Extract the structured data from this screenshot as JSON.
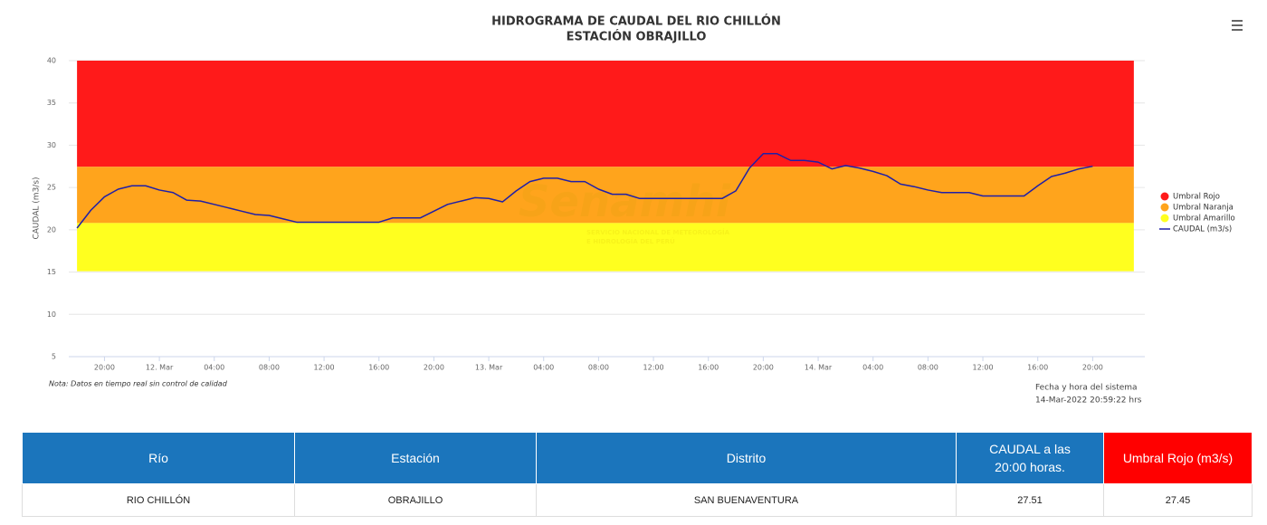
{
  "chart_data": {
    "type": "line",
    "title": "HIDROGRAMA DE CAUDAL DEL RIO CHILLÓN",
    "subtitle": "ESTACIÓN OBRAJILLO",
    "y_label": "CAUDAL (m3/s)",
    "xlim": [
      17.4,
      95.8
    ],
    "ylim": [
      5,
      40
    ],
    "yticks": [
      5,
      10,
      15,
      20,
      25,
      30,
      35,
      40
    ],
    "xticks": [
      {
        "value": 20,
        "label": "20:00"
      },
      {
        "value": 24,
        "label": "12. Mar"
      },
      {
        "value": 28,
        "label": "04:00"
      },
      {
        "value": 32,
        "label": "08:00"
      },
      {
        "value": 36,
        "label": "12:00"
      },
      {
        "value": 40,
        "label": "16:00"
      },
      {
        "value": 44,
        "label": "20:00"
      },
      {
        "value": 48,
        "label": "13. Mar"
      },
      {
        "value": 52,
        "label": "04:00"
      },
      {
        "value": 56,
        "label": "08:00"
      },
      {
        "value": 60,
        "label": "12:00"
      },
      {
        "value": 64,
        "label": "16:00"
      },
      {
        "value": 68,
        "label": "20:00"
      },
      {
        "value": 72,
        "label": "14. Mar"
      },
      {
        "value": 76,
        "label": "04:00"
      },
      {
        "value": 80,
        "label": "08:00"
      },
      {
        "value": 84,
        "label": "12:00"
      },
      {
        "value": 88,
        "label": "16:00"
      },
      {
        "value": 92,
        "label": "20:00"
      }
    ],
    "grid": true,
    "legend": "right",
    "band_x": [
      18,
      95
    ],
    "bands": [
      {
        "name": "Umbral Rojo",
        "color": "#ff1a1a",
        "from": 27.45,
        "to": 40
      },
      {
        "name": "Umbral Naranja",
        "color": "#ffa41c",
        "from": 20.8,
        "to": 27.45
      },
      {
        "name": "Umbral Amarillo",
        "color": "#ffff1f",
        "from": 15.1,
        "to": 20.8
      }
    ],
    "x": [
      18,
      19,
      20,
      21,
      22,
      23,
      24,
      25,
      26,
      27,
      28,
      29,
      30,
      31,
      32,
      33,
      34,
      35,
      36,
      37,
      38,
      39,
      40,
      41,
      42,
      43,
      44,
      45,
      46,
      47,
      48,
      49,
      50,
      51,
      52,
      53,
      54,
      55,
      56,
      57,
      58,
      59,
      60,
      61,
      62,
      63,
      64,
      65,
      66,
      67,
      68,
      69,
      70,
      71,
      72,
      73,
      74,
      75,
      76,
      77,
      78,
      79,
      80,
      81,
      82,
      83,
      84,
      85,
      86,
      87,
      88,
      89,
      90,
      91,
      92
    ],
    "series": [
      {
        "name": "CAUDAL (m3/s)",
        "color": "#1f1fa8",
        "values": [
          20.2,
          22.3,
          23.9,
          24.8,
          25.2,
          25.2,
          24.7,
          24.4,
          23.5,
          23.4,
          23.0,
          22.6,
          22.2,
          21.8,
          21.7,
          21.3,
          20.9,
          20.9,
          20.9,
          20.9,
          20.9,
          20.9,
          20.9,
          21.4,
          21.4,
          21.4,
          22.2,
          23.0,
          23.4,
          23.8,
          23.7,
          23.3,
          24.6,
          25.7,
          26.1,
          26.1,
          25.7,
          25.7,
          24.8,
          24.2,
          24.2,
          23.7,
          23.7,
          23.7,
          23.7,
          23.7,
          23.7,
          23.7,
          24.6,
          27.3,
          29.0,
          29.0,
          28.2,
          28.2,
          28.0,
          27.2,
          27.6,
          27.3,
          26.9,
          26.4,
          25.4,
          25.1,
          24.7,
          24.4,
          24.4,
          24.4,
          24.0,
          24.0,
          24.0,
          24.0,
          25.2,
          26.3,
          26.7,
          27.2,
          27.51
        ]
      }
    ],
    "note": "Nota: Datos en tiempo real sin control de calidad",
    "system_time_label": "Fecha y hora del sistema",
    "system_time": "14-Mar-2022 20:59:22 hrs",
    "watermark": {
      "title": "Senamhi",
      "lines": [
        "SERVICIO NACIONAL DE METEOROLOGÍA",
        "E HIDROLOGÍA DEL PERÚ"
      ]
    }
  },
  "table": {
    "headers": [
      "Río",
      "Estación",
      "Distrito",
      "CAUDAL a las 20:00 horas.",
      "Umbral Rojo (m3/s)"
    ],
    "rows": [
      [
        "RIO CHILLÓN",
        "OBRAJILLO",
        "SAN BUENAVENTURA",
        27.51,
        27.45
      ]
    ]
  }
}
